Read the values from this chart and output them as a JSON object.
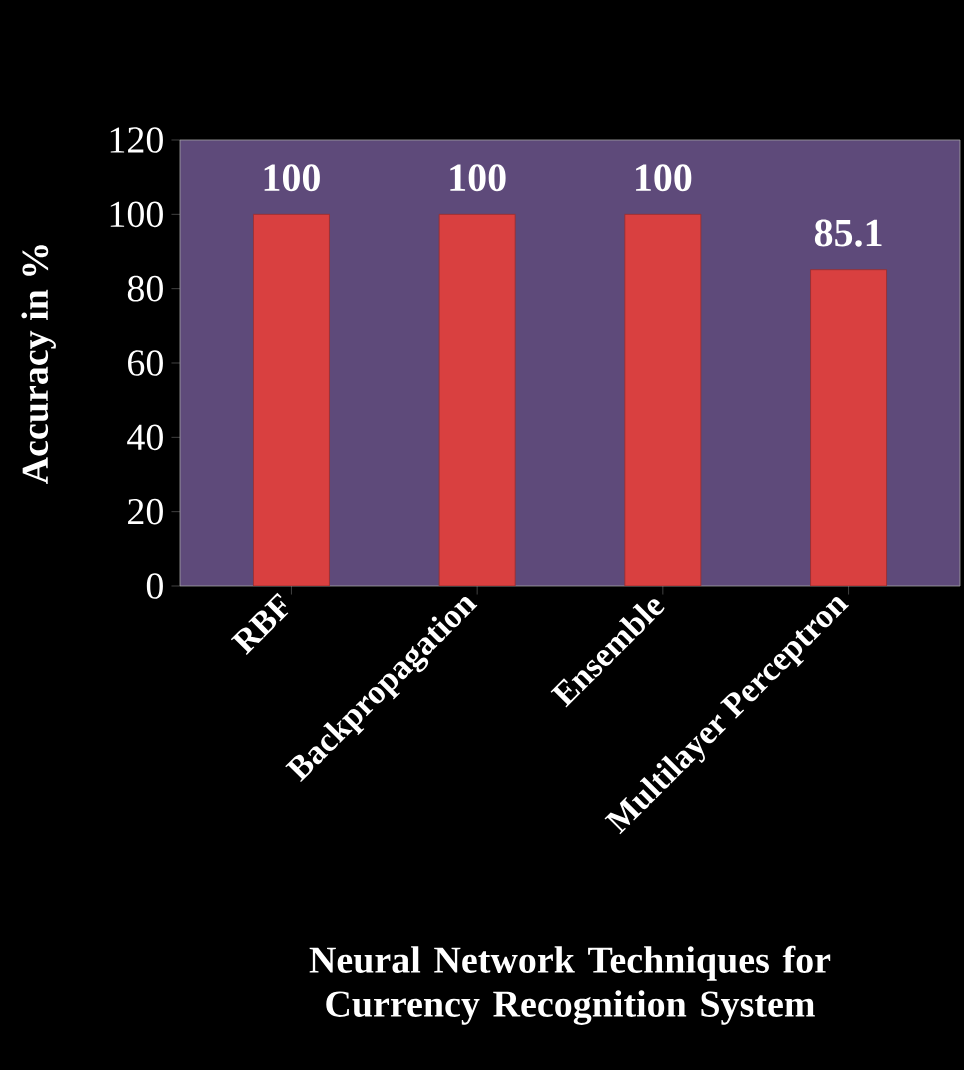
{
  "chart_data": {
    "type": "bar",
    "xlabel": "Neural Network Techniques for Currency Recognition System",
    "ylabel": "Accuracy in %",
    "categories": [
      "RBF",
      "Backpropagation",
      "Ensemble",
      "Multilayer Perceptron"
    ],
    "values": [
      100,
      100,
      100,
      85.1
    ],
    "color": "#d94040",
    "ylim": [
      0,
      120
    ],
    "yticks": [
      0,
      20,
      40,
      60,
      80,
      100,
      120
    ],
    "data_labels": true,
    "grid": false
  }
}
